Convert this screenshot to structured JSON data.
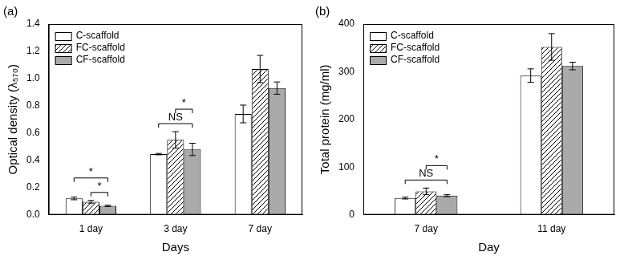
{
  "chart_data": [
    {
      "type": "bar",
      "title": "(a)",
      "x_label": "Days",
      "y_label": "Optical density (λ₅₇₀)",
      "categories": [
        "1 day",
        "3 day",
        "7 day"
      ],
      "series": [
        {
          "name": "C-scaffold",
          "color": "#ffffff",
          "values": [
            0.12,
            0.445,
            0.74
          ],
          "errors": [
            0.01,
            0.005,
            0.065
          ]
        },
        {
          "name": "FC-scaffold",
          "color": "#000000",
          "marker": "hatch",
          "values": [
            0.095,
            0.55,
            1.07
          ],
          "errors": [
            0.01,
            0.06,
            0.1
          ]
        },
        {
          "name": "CF-scaffold",
          "color": "#aaaaaa",
          "values": [
            0.065,
            0.48,
            0.93
          ],
          "errors": [
            0.005,
            0.045,
            0.045
          ]
        }
      ],
      "ylim": [
        0,
        1.4
      ],
      "yticks": [
        {
          "value": 0,
          "label": "0.0"
        },
        0.2,
        0.4,
        0.6,
        0.8,
        {
          "value": 1,
          "label": "1.0"
        },
        1.2,
        1.4
      ],
      "grid": false,
      "legend": "upper left",
      "annotations": [
        {
          "text": "*",
          "category": "1 day",
          "from": "FC-scaffold",
          "to": "CF-scaffold"
        },
        {
          "text": "*",
          "category": "1 day",
          "from": "C-scaffold",
          "to": "CF-scaffold"
        },
        {
          "text": "NS",
          "category": "3 day",
          "from": "C-scaffold",
          "to": "CF-scaffold"
        },
        {
          "text": "*",
          "category": "3 day",
          "from": "FC-scaffold",
          "to": "CF-scaffold"
        }
      ]
    },
    {
      "type": "bar",
      "title": "(b)",
      "x_label": "Day",
      "y_label": "Total protein (mg/ml)",
      "categories": [
        "7 day",
        "11 day"
      ],
      "series": [
        {
          "name": "C-scaffold",
          "color": "#ffffff",
          "values": [
            35,
            292
          ],
          "errors": [
            2,
            14
          ]
        },
        {
          "name": "FC-scaffold",
          "color": "#000000",
          "marker": "hatch",
          "values": [
            49,
            352
          ],
          "errors": [
            7,
            28
          ]
        },
        {
          "name": "CF-scaffold",
          "color": "#aaaaaa",
          "values": [
            40,
            312
          ],
          "errors": [
            2,
            8
          ]
        }
      ],
      "ylim": [
        0,
        400
      ],
      "yticks": [
        0,
        100,
        200,
        300,
        400
      ],
      "grid": false,
      "legend": "upper left",
      "annotations": [
        {
          "text": "NS",
          "category": "7 day",
          "from": "C-scaffold",
          "to": "CF-scaffold"
        },
        {
          "text": "*",
          "category": "7 day",
          "from": "FC-scaffold",
          "to": "CF-scaffold"
        }
      ]
    }
  ]
}
